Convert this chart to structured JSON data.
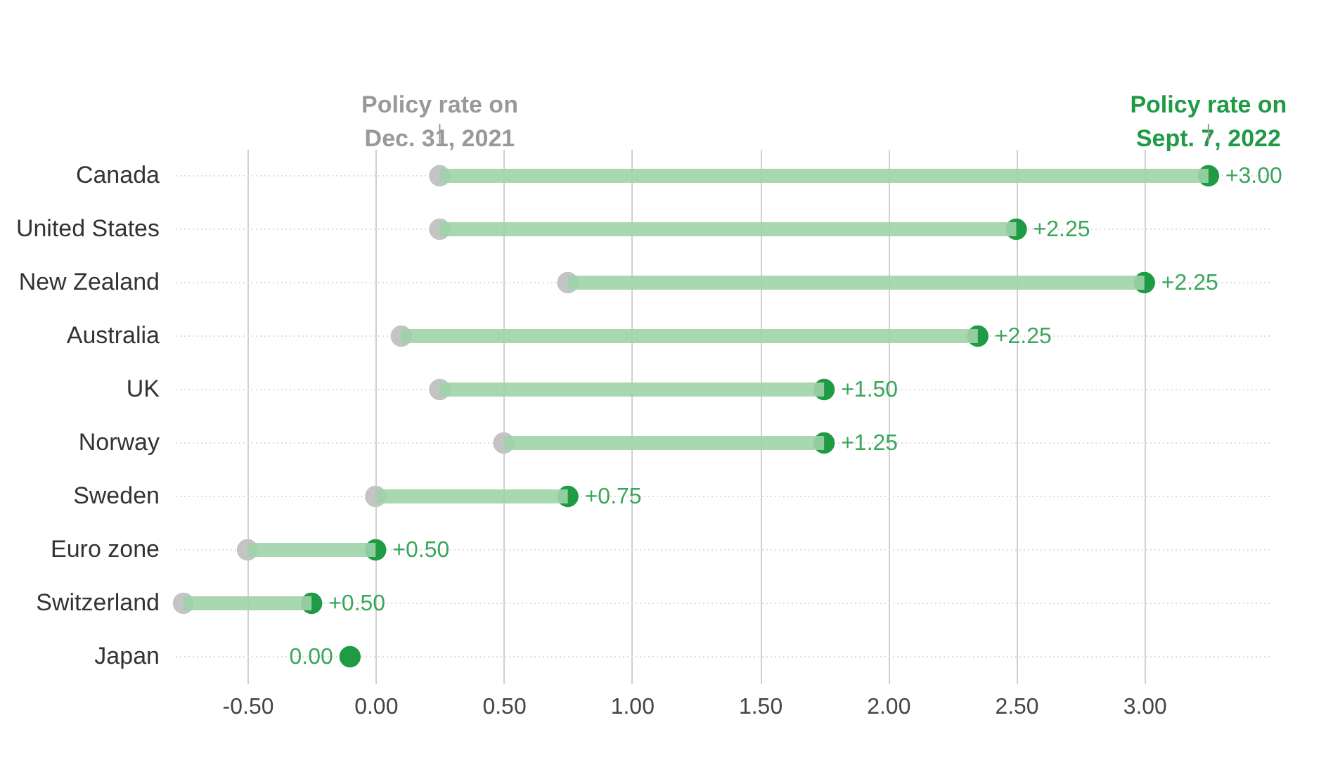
{
  "chart_data": {
    "type": "bar",
    "orientation": "horizontal",
    "categories": [
      "Canada",
      "United States",
      "New Zealand",
      "Australia",
      "UK",
      "Norway",
      "Sweden",
      "Euro zone",
      "Switzerland",
      "Japan"
    ],
    "series": [
      {
        "type": "bar",
        "color": "#9fd3a9",
        "base": [
          0.25,
          0.25,
          0.75,
          0.1,
          0.25,
          0.5,
          0,
          -0.5,
          -0.75,
          null
        ],
        "values": [
          3.0,
          2.25,
          2.25,
          2.25,
          1.5,
          1.25,
          0.75,
          0.5,
          0.5,
          null
        ],
        "value_labels": [
          "+3.00",
          "+2.25",
          "+2.25",
          "+2.25",
          "+1.50",
          "+1.25",
          "+0.75",
          "+0.50",
          "+0.50",
          null
        ]
      },
      {
        "type": "scatter",
        "name": "Policy rate on Dec. 31, 2021",
        "color": "#c4c4c4",
        "values": [
          0.25,
          0.25,
          0.75,
          0.1,
          0.25,
          0.5,
          0,
          -0.5,
          -0.75,
          null
        ]
      },
      {
        "type": "scatter",
        "name": "Policy rate on Sept. 7, 2022",
        "color": "#1f9a45",
        "values": [
          3.25,
          2.5,
          3.0,
          2.35,
          1.75,
          1.75,
          0.75,
          0,
          -0.25,
          -0.1
        ]
      }
    ],
    "xlim": [
      -0.78,
      3.5
    ],
    "xticks": [
      {
        "value": -0.5,
        "label": "-0.50"
      },
      {
        "value": 0,
        "label": "0.00"
      },
      {
        "value": 0.5,
        "label": "0.50"
      },
      {
        "value": 1,
        "label": "1.00"
      },
      {
        "value": 1.5,
        "label": "1.50"
      },
      {
        "value": 2,
        "label": "2.00"
      },
      {
        "value": 2.5,
        "label": "2.50"
      },
      {
        "value": 3,
        "label": "3.00"
      }
    ],
    "annotations": [
      {
        "text": "0.00",
        "x": -0.1,
        "y": "Japan"
      }
    ],
    "grid": true,
    "marker": "circle"
  }
}
